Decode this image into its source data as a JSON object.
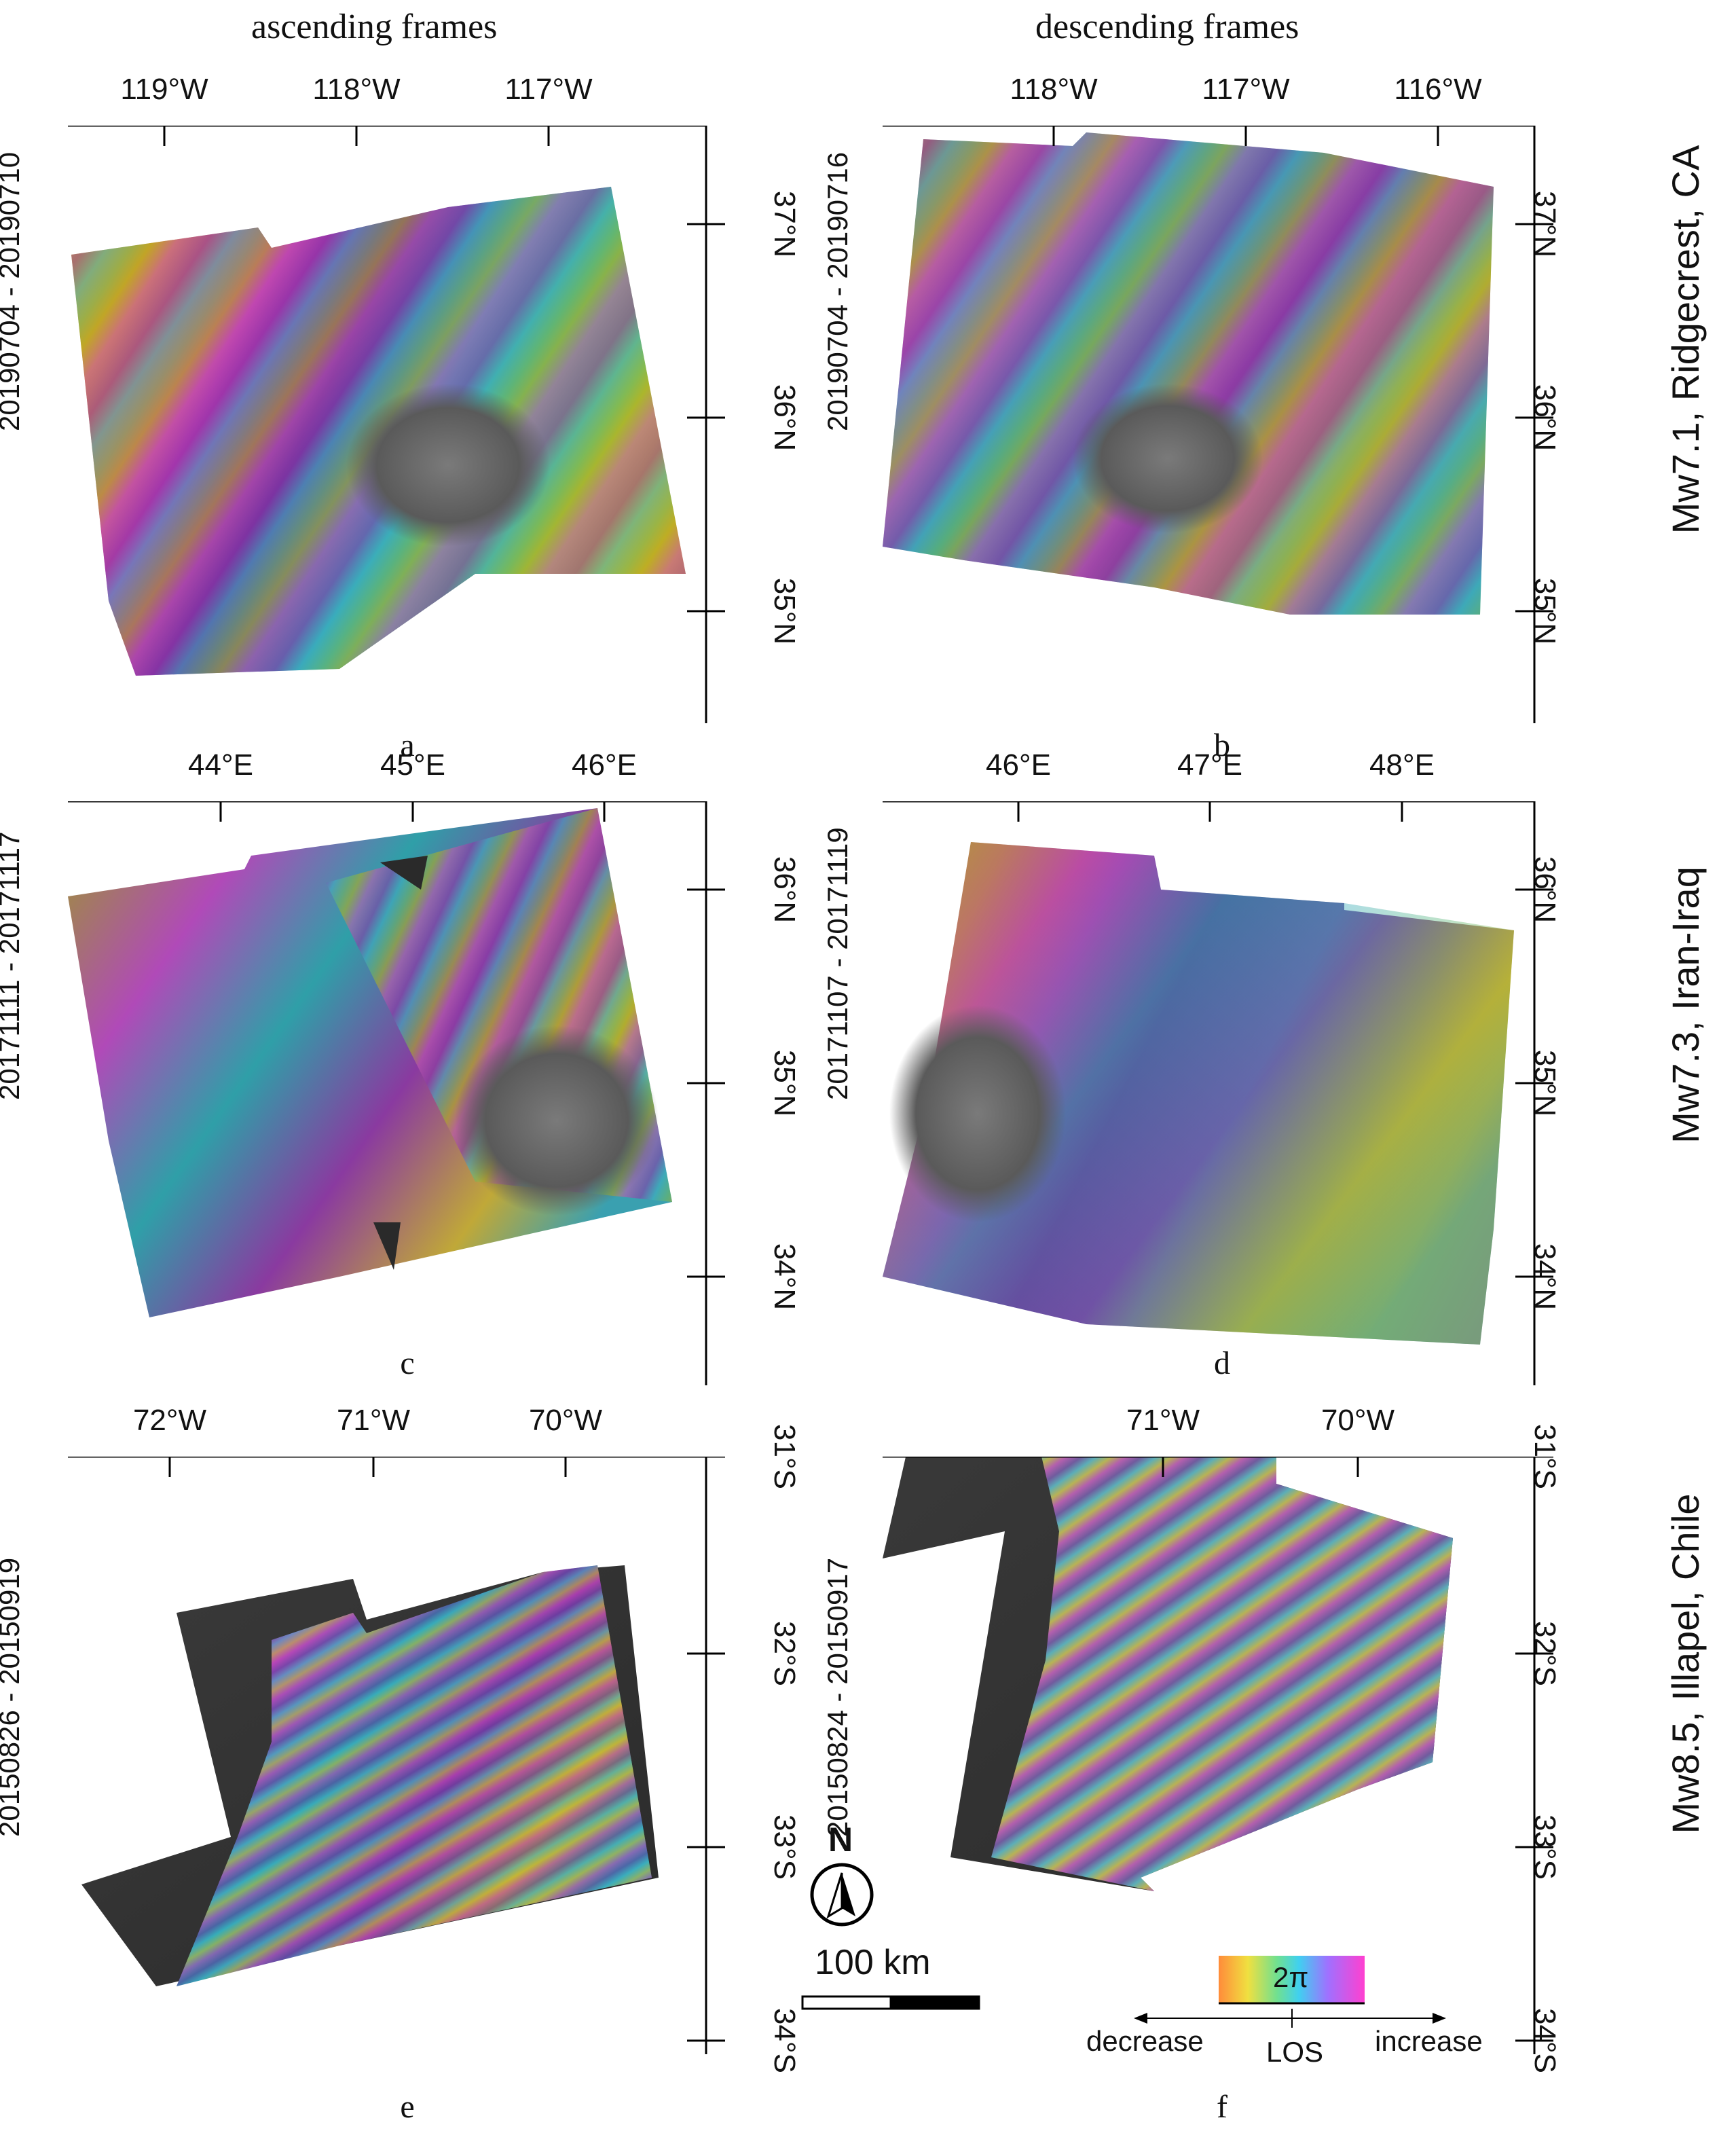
{
  "columns": {
    "ascending": "ascending frames",
    "descending": "descending frames"
  },
  "events": [
    {
      "label": "Mw7.1, Ridgecrest, CA"
    },
    {
      "label": "Mw7.3, Iran-Iraq"
    },
    {
      "label": "Mw8.5, Illapel, Chile"
    }
  ],
  "panels": {
    "a": {
      "letter": "a",
      "date": "20190704 - 20190710",
      "lon": [
        "119°W",
        "118°W",
        "117°W"
      ],
      "lat": [
        "37°N",
        "36°N",
        "35°N"
      ]
    },
    "b": {
      "letter": "b",
      "date": "20190704 - 20190716",
      "lon": [
        "118°W",
        "117°W",
        "116°W"
      ],
      "lat": [
        "37°N",
        "36°N",
        "35°N"
      ]
    },
    "c": {
      "letter": "c",
      "date": "20171111 - 20171117",
      "lon": [
        "44°E",
        "45°E",
        "46°E"
      ],
      "lat": [
        "36°N",
        "35°N",
        "34°N"
      ]
    },
    "d": {
      "letter": "d",
      "date": "20171107 - 20171119",
      "lon": [
        "46°E",
        "47°E",
        "48°E"
      ],
      "lat": [
        "36°N",
        "35°N",
        "34°N"
      ]
    },
    "e": {
      "letter": "e",
      "date": "20150826 - 20150919",
      "lon": [
        "72°W",
        "71°W",
        "70°W"
      ],
      "lat": [
        "31°S",
        "32°S",
        "33°S",
        "34°S"
      ]
    },
    "f": {
      "letter": "f",
      "date": "20150824 - 20150917",
      "lon": [
        "71°W",
        "70°W"
      ],
      "lat": [
        "31°S",
        "32°S",
        "33°S",
        "34°S"
      ]
    }
  },
  "north_arrow": {
    "label": "N"
  },
  "scale_bar": {
    "label": "100 km"
  },
  "legend": {
    "cycle": "2π",
    "decrease": "decrease",
    "increase": "increase",
    "axis": "LOS"
  }
}
